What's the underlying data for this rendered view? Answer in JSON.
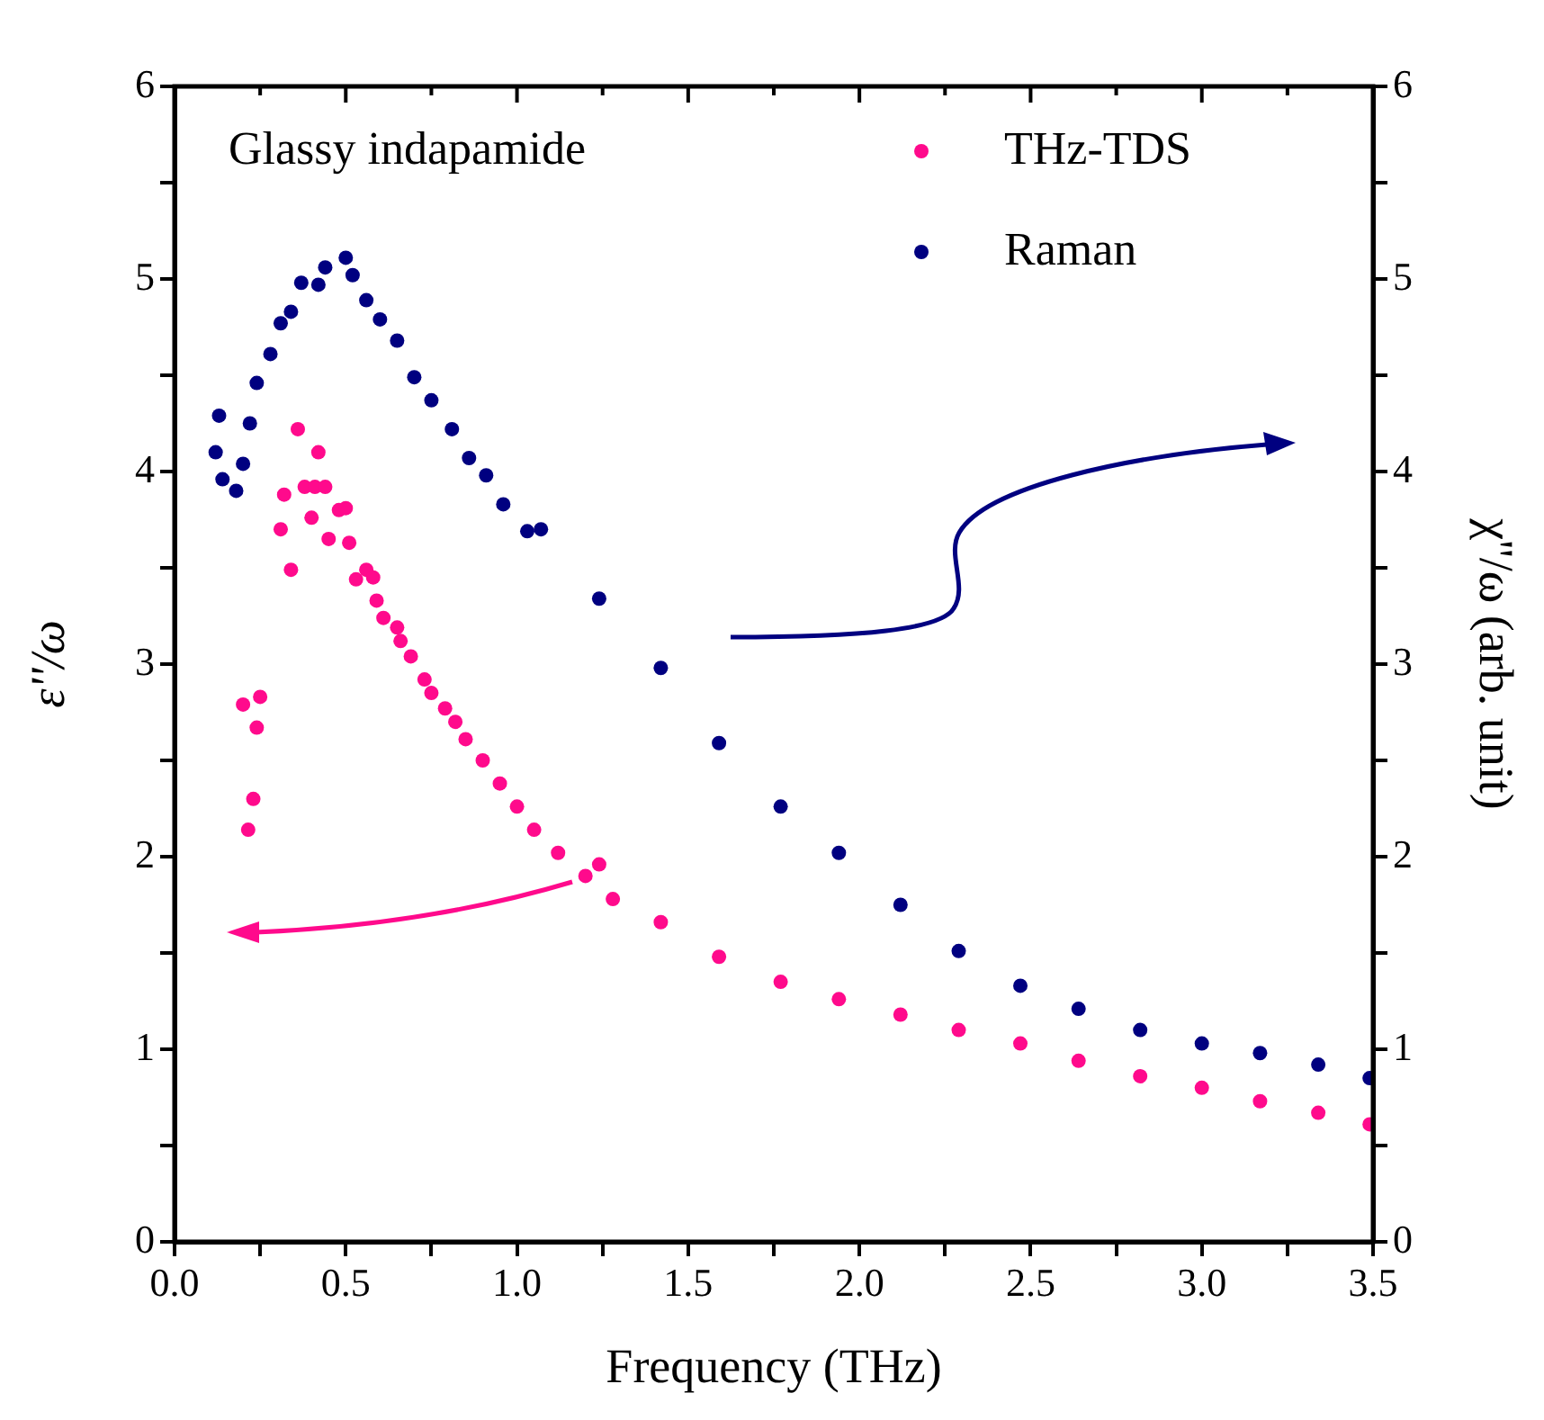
{
  "chart_data": {
    "type": "scatter",
    "xlabel": "Frequency (THz)",
    "ylabel": "ε''/ω",
    "y2label": "χ''/ω (arb. unit)",
    "annotations": [
      "Glassy indapamide"
    ],
    "xlim": [
      0,
      3.5
    ],
    "xticks": [
      {
        "value": 0,
        "label": "0.0"
      },
      {
        "value": 0.25,
        "label": null
      },
      {
        "value": 0.5,
        "label": "0.5"
      },
      {
        "value": 0.75,
        "label": null
      },
      {
        "value": 1,
        "label": "1.0"
      },
      {
        "value": 1.25,
        "label": null
      },
      {
        "value": 1.5,
        "label": "1.5"
      },
      {
        "value": 1.75,
        "label": null
      },
      {
        "value": 2,
        "label": "2.0"
      },
      {
        "value": 2.25,
        "label": null
      },
      {
        "value": 2.5,
        "label": "2.5"
      },
      {
        "value": 2.75,
        "label": null
      },
      {
        "value": 3,
        "label": "3.0"
      },
      {
        "value": 3.25,
        "label": null
      },
      {
        "value": 3.5,
        "label": "3.5"
      }
    ],
    "ylim": [
      0,
      6
    ],
    "yticks": [
      0,
      {
        "value": 0.5,
        "label": null
      },
      1,
      {
        "value": 1.5,
        "label": null
      },
      2,
      {
        "value": 2.5,
        "label": null
      },
      3,
      {
        "value": 3.5,
        "label": null
      },
      4,
      {
        "value": 4.5,
        "label": null
      },
      5,
      {
        "value": 5.5,
        "label": null
      },
      6
    ],
    "y2lim": [
      0,
      6
    ],
    "y2ticks": [
      0,
      {
        "value": 0.5,
        "label": null
      },
      1,
      {
        "value": 1.5,
        "label": null
      },
      2,
      {
        "value": 2.5,
        "label": null
      },
      3,
      {
        "value": 3.5,
        "label": null
      },
      4,
      {
        "value": 4.5,
        "label": null
      },
      5,
      {
        "value": 5.5,
        "label": null
      },
      6
    ],
    "legend": "top right",
    "grid": false,
    "marker": "circle",
    "series": [
      {
        "name": "THz-TDS",
        "color": "#ff0a8c",
        "x": [
          0.2,
          0.215,
          0.23,
          0.24,
          0.25,
          0.31,
          0.32,
          0.34,
          0.36,
          0.38,
          0.4,
          0.41,
          0.42,
          0.44,
          0.45,
          0.48,
          0.5,
          0.51,
          0.53,
          0.56,
          0.58,
          0.59,
          0.61,
          0.65,
          0.66,
          0.69,
          0.73,
          0.75,
          0.79,
          0.82,
          0.85,
          0.9,
          0.95,
          1.0,
          1.05,
          1.12,
          1.2,
          1.24,
          1.28,
          1.42,
          1.59,
          1.77,
          1.94,
          2.12,
          2.29,
          2.47,
          2.64,
          2.82,
          3.0,
          3.17,
          3.34,
          3.49
        ],
        "values": [
          2.79,
          2.14,
          2.3,
          2.67,
          2.83,
          3.7,
          3.88,
          3.49,
          4.22,
          3.92,
          3.76,
          3.92,
          4.1,
          3.92,
          3.65,
          3.8,
          3.81,
          3.63,
          3.44,
          3.49,
          3.45,
          3.33,
          3.24,
          3.19,
          3.12,
          3.04,
          2.92,
          2.85,
          2.77,
          2.7,
          2.61,
          2.5,
          2.38,
          2.26,
          2.14,
          2.02,
          1.9,
          1.96,
          1.78,
          1.66,
          1.48,
          1.35,
          1.26,
          1.18,
          1.1,
          1.03,
          0.94,
          0.86,
          0.8,
          0.73,
          0.67,
          0.61
        ]
      },
      {
        "name": "Raman",
        "color": "#000080",
        "axis": "y2",
        "x": [
          0.12,
          0.13,
          0.14,
          0.18,
          0.2,
          0.22,
          0.24,
          0.28,
          0.31,
          0.34,
          0.37,
          0.42,
          0.44,
          0.5,
          0.52,
          0.56,
          0.6,
          0.65,
          0.7,
          0.75,
          0.81,
          0.86,
          0.91,
          0.96,
          1.03,
          1.07,
          1.24,
          1.42,
          1.59,
          1.77,
          1.94,
          2.12,
          2.29,
          2.47,
          2.64,
          2.82,
          3.0,
          3.17,
          3.34,
          3.49
        ],
        "values": [
          4.1,
          4.29,
          3.96,
          3.9,
          4.04,
          4.25,
          4.46,
          4.61,
          4.77,
          4.83,
          4.98,
          4.97,
          5.06,
          5.11,
          5.02,
          4.89,
          4.79,
          4.68,
          4.49,
          4.37,
          4.22,
          4.07,
          3.98,
          3.83,
          3.69,
          3.7,
          3.34,
          2.98,
          2.59,
          2.26,
          2.02,
          1.75,
          1.51,
          1.33,
          1.21,
          1.1,
          1.03,
          0.98,
          0.92,
          0.85
        ]
      }
    ]
  }
}
